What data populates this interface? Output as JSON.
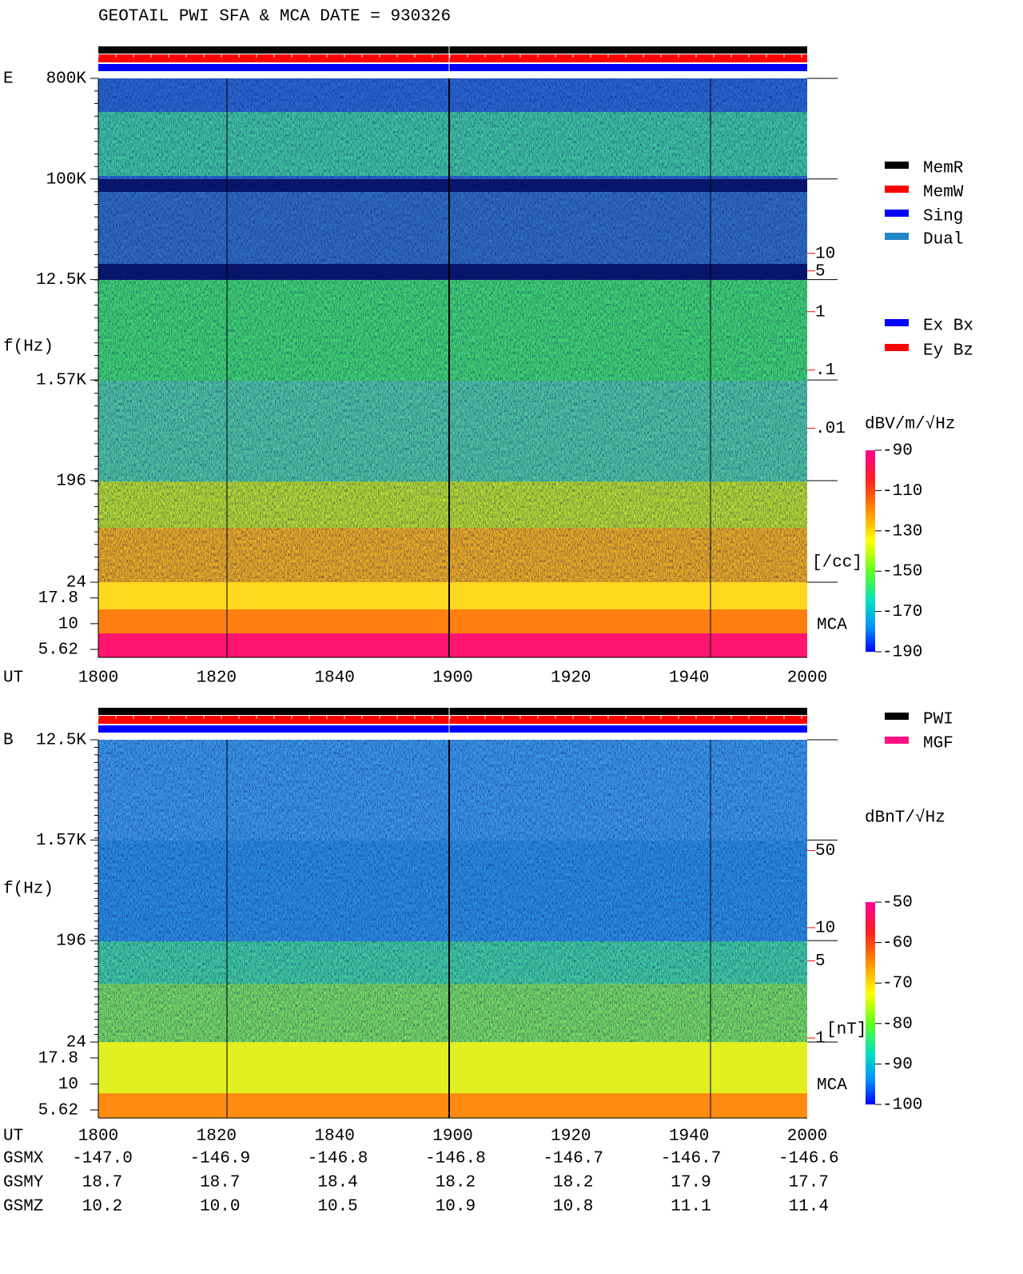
{
  "chart_data": [
    {
      "type": "spectrogram",
      "title": "GEOTAIL  PWI SFA & MCA   DATE = 930326",
      "panel_label": "E",
      "y_label": "f(Hz)",
      "log_y": true,
      "ylim": [
        24,
        800000
      ],
      "yticks": [
        {
          "value": 800000,
          "label": "800K"
        },
        {
          "value": 100000,
          "label": "100K"
        },
        {
          "value": 12500,
          "label": "12.5K"
        },
        {
          "value": 1570,
          "label": "1.57K"
        },
        196,
        24
      ],
      "mca_label": "MCA",
      "mca_ylim": [
        4.7,
        25.3
      ],
      "mca_ticks": [
        17.8,
        10,
        5.62
      ],
      "x_label": "UT",
      "x_labels": [
        "1800",
        "1820",
        "1840",
        "1900",
        "1920",
        "1940",
        "2000"
      ],
      "y2lim": [
        2.3e-05,
        10000
      ],
      "y2ticks": [
        10,
        5,
        1,
        {
          "value": 0.1,
          "label": ".1"
        },
        {
          "value": 0.01,
          "label": ".01"
        }
      ],
      "y2_unit": "[/cc]",
      "y2_color": "#ff0000",
      "colorbar": {
        "unit": "dBV/m/√Hz",
        "lim": [
          -190,
          -90
        ],
        "ticks": [
          -90,
          -110,
          -130,
          -150,
          -170,
          -190
        ]
      },
      "legend": [
        {
          "name": "MemR",
          "color": "#000000"
        },
        {
          "name": "MemW",
          "color": "#ff0000"
        },
        {
          "name": "Sing",
          "color": "#0000ff"
        },
        {
          "name": "Dual",
          "color": "#2088c8"
        }
      ],
      "legend2": [
        {
          "name": "Ex Bx",
          "color": "#0000ff"
        },
        {
          "name": "Ey Bz",
          "color": "#ff0000"
        }
      ]
    },
    {
      "type": "spectrogram",
      "panel_label": "B",
      "y_label": "f(Hz)",
      "log_y": true,
      "ylim": [
        24,
        12500
      ],
      "yticks": [
        {
          "value": 12500,
          "label": "12.5K"
        },
        {
          "value": 1570,
          "label": "1.57K"
        },
        196,
        24
      ],
      "mca_label": "MCA",
      "mca_ylim": [
        4.7,
        25.3
      ],
      "mca_ticks": [
        17.8,
        10,
        5.62
      ],
      "x_label": "UT",
      "x_labels": [
        "1800",
        "1820",
        "1840",
        "1900",
        "1920",
        "1940",
        "2000"
      ],
      "y2lim": [
        0.92,
        503
      ],
      "y2ticks": [
        50,
        10,
        5,
        1
      ],
      "y2_unit": "[nT]",
      "y2_color": "#ff0000",
      "colorbar": {
        "unit": "dBnT/√Hz",
        "lim": [
          -100,
          -50
        ],
        "ticks": [
          -50,
          -60,
          -70,
          -80,
          -90,
          -100
        ]
      },
      "legend": [
        {
          "name": "PWI",
          "color": "#000000"
        },
        {
          "name": "MGF",
          "color": "#ff1080"
        }
      ]
    }
  ],
  "orbit_table": {
    "rows": [
      {
        "label": "GSMX",
        "values": [
          "-147.0",
          "-146.9",
          "-146.8",
          "-146.8",
          "-146.7",
          "-146.7",
          "-146.6"
        ]
      },
      {
        "label": "GSMY",
        "values": [
          "18.7",
          "18.7",
          "18.4",
          "18.2",
          "18.2",
          "17.9",
          "17.7"
        ]
      },
      {
        "label": "GSMZ",
        "values": [
          "10.2",
          "10.0",
          "10.5",
          "10.9",
          "10.8",
          "11.1",
          "11.4"
        ]
      }
    ]
  }
}
